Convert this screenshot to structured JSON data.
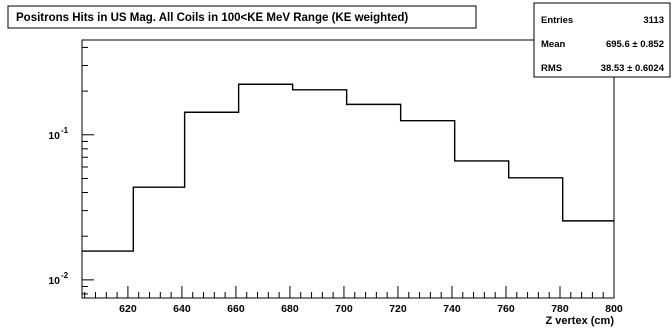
{
  "chart_data": {
    "type": "histogram",
    "title": "Positrons Hits in US Mag. All Coils in 100<KE MeV Range (KE weighted)",
    "xlabel": "Z vertex (cm)",
    "ylabel": "",
    "xlim": [
      603,
      800
    ],
    "ylim": [
      0.0075,
      0.45
    ],
    "y_scale": "log",
    "grid": false,
    "x_ticks": [
      {
        "value": 620,
        "label": "620"
      },
      {
        "value": 640,
        "label": "640"
      },
      {
        "value": 660,
        "label": "660"
      },
      {
        "value": 680,
        "label": "680"
      },
      {
        "value": 700,
        "label": "700"
      },
      {
        "value": 720,
        "label": "720"
      },
      {
        "value": 740,
        "label": "740"
      },
      {
        "value": 760,
        "label": "760"
      },
      {
        "value": 780,
        "label": "780"
      },
      {
        "value": 800,
        "label": "800"
      }
    ],
    "y_ticks": [
      {
        "value": 0.1,
        "label": "10",
        "exponent": "-1"
      },
      {
        "value": 0.01,
        "label": "10",
        "exponent": "-2"
      }
    ],
    "bin_edges": [
      603,
      622,
      641,
      661,
      681,
      701,
      721,
      741,
      761,
      781,
      800
    ],
    "values": [
      0.0158,
      0.0435,
      0.143,
      0.223,
      0.204,
      0.162,
      0.125,
      0.066,
      0.0505,
      0.0255
    ],
    "stats": [
      {
        "label": "Entries",
        "value": "3113"
      },
      {
        "label": "Mean",
        "value": "695.6 ±  0.852"
      },
      {
        "label": "RMS",
        "value": "38.53 ± 0.6024"
      }
    ]
  }
}
